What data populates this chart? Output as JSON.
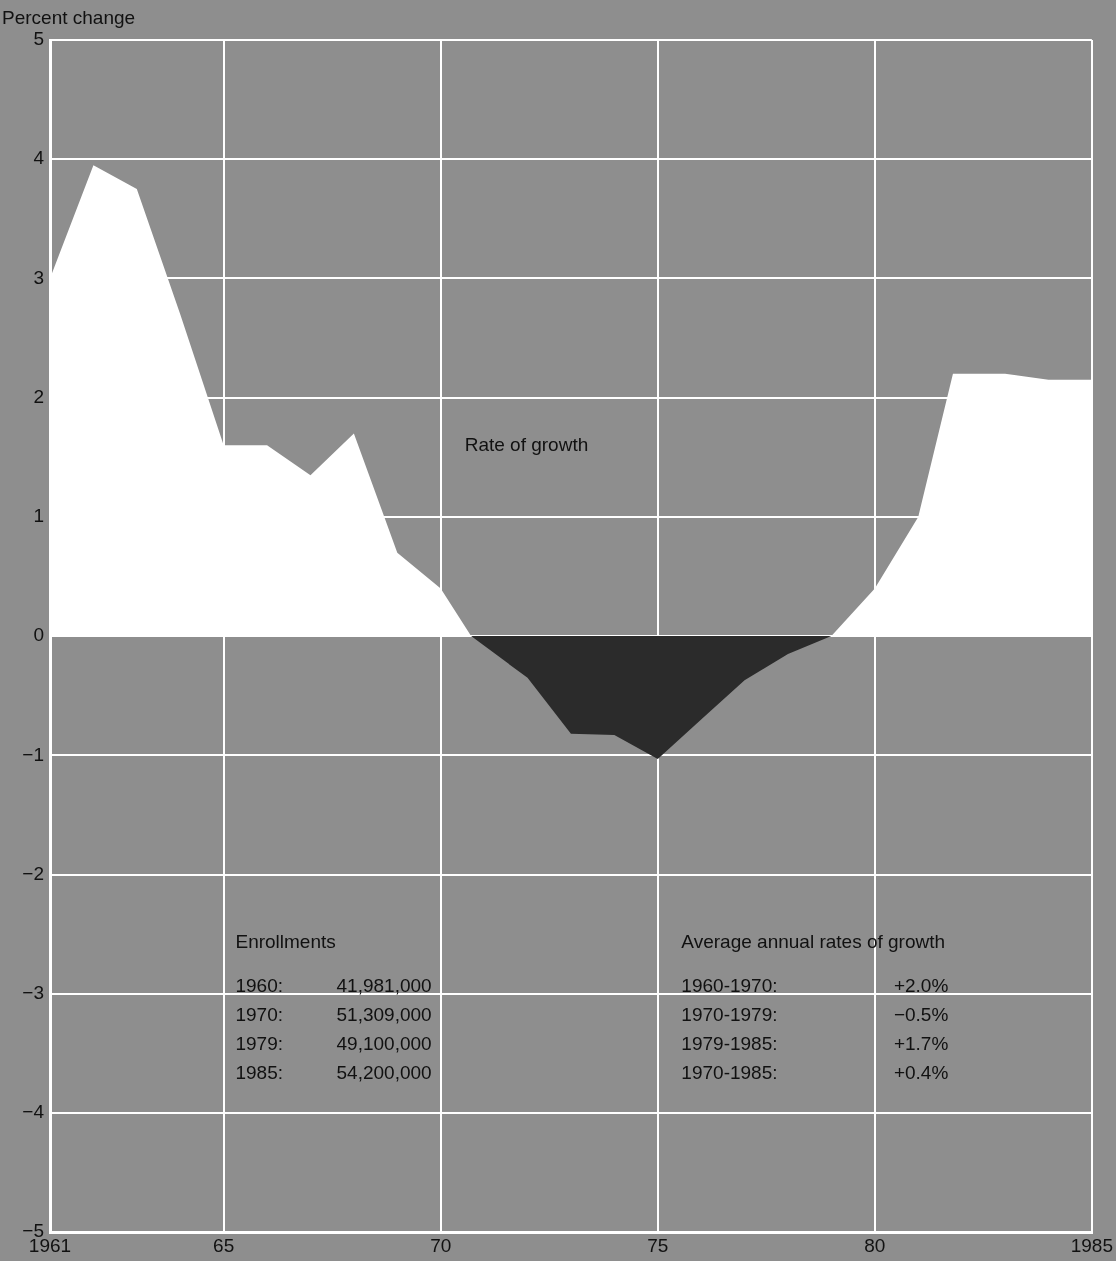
{
  "chart_data": {
    "type": "area",
    "ylabel": "Percent change",
    "xlim": [
      1961,
      1985
    ],
    "xticks": [
      1961,
      {
        "value": 1965,
        "label": "65"
      },
      {
        "value": 1970,
        "label": "70"
      },
      {
        "value": 1975,
        "label": "75"
      },
      {
        "value": 1980,
        "label": "80"
      },
      1985
    ],
    "ylim": [
      -5,
      5
    ],
    "yticks": [
      {
        "value": -5,
        "label": "−5"
      },
      {
        "value": -4,
        "label": "−4"
      },
      {
        "value": -3,
        "label": "−3"
      },
      {
        "value": -2,
        "label": "−2"
      },
      {
        "value": -1,
        "label": "−1"
      },
      0,
      1,
      2,
      3,
      4,
      5
    ],
    "grid": true,
    "legend": false,
    "series": [
      {
        "name": "Rate of growth",
        "color": "#ffffff",
        "x": [
          1961,
          1962,
          1963,
          1964,
          1965,
          1966,
          1967,
          1968,
          1969,
          1970,
          1970.7,
          1979,
          1980,
          1981,
          1981.8,
          1983,
          1984,
          1985
        ],
        "values": [
          3.0,
          3.95,
          3.75,
          2.7,
          1.6,
          1.6,
          1.35,
          1.7,
          0.7,
          0.4,
          0,
          0,
          0.4,
          1.0,
          2.2,
          2.2,
          2.15,
          2.15
        ]
      },
      {
        "color": "#2b2b2b",
        "x": [
          1970.7,
          1972,
          1973,
          1974,
          1975,
          1976,
          1977,
          1978,
          1979
        ],
        "values": [
          0,
          -0.35,
          -0.82,
          -0.83,
          -1.03,
          -0.7,
          -0.37,
          -0.15,
          0
        ]
      }
    ],
    "annotations": [
      "Enrollments",
      "1960: 41,981,000",
      "1970: 51,309,000",
      "1979: 49,100,000",
      "1985: 54,200,000",
      "Average annual rates of growth",
      "1960-1970: +2.0%",
      "1970-1979: −0.5%",
      "1979-1985: +1.7%",
      "1970-1985: +0.4%"
    ]
  }
}
